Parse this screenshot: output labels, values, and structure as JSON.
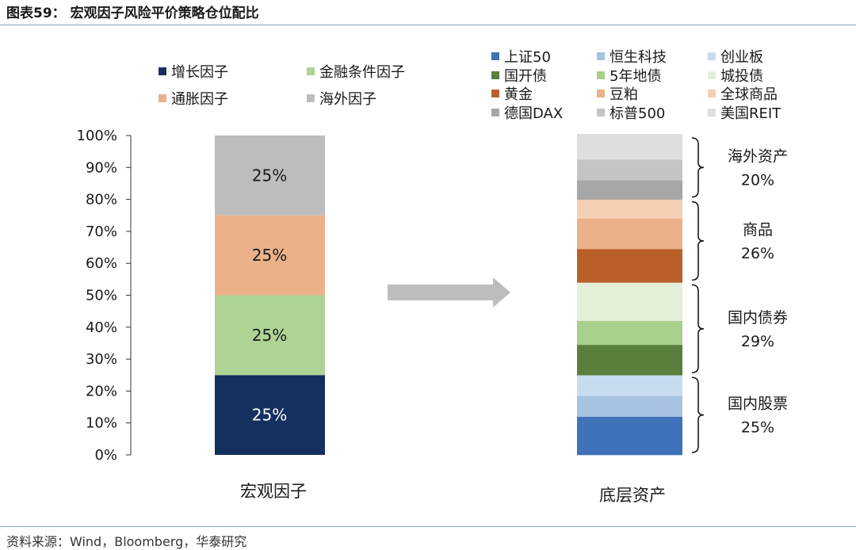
{
  "title": "图表59：  宏观因子风险平价策略仓位配比",
  "source": "资料来源：Wind，Bloomberg，华泰研究",
  "chart_data": [
    {
      "type": "bar",
      "stacked": true,
      "category": "宏观因子",
      "ylim": [
        0,
        100
      ],
      "yticks": [
        "0%",
        "10%",
        "20%",
        "30%",
        "40%",
        "50%",
        "60%",
        "70%",
        "80%",
        "90%",
        "100%"
      ],
      "series": [
        {
          "name": "增长因子",
          "value": 25,
          "label": "25%",
          "color": "#14305e"
        },
        {
          "name": "金融条件因子",
          "value": 25,
          "label": "25%",
          "color": "#aed394"
        },
        {
          "name": "通胀因子",
          "value": 25,
          "label": "25%",
          "color": "#ebb28a"
        },
        {
          "name": "海外因子",
          "value": 25,
          "label": "25%",
          "color": "#bdbdbd"
        }
      ]
    },
    {
      "type": "bar",
      "stacked": true,
      "category": "底层资产",
      "ylim": [
        0,
        100
      ],
      "series": [
        {
          "name": "上证50",
          "value": 12,
          "color": "#3f72b8"
        },
        {
          "name": "恒生科技",
          "value": 6.5,
          "color": "#a6c3e3"
        },
        {
          "name": "创业板",
          "value": 6.5,
          "color": "#c8dcef"
        },
        {
          "name": "国开债",
          "value": 9.5,
          "color": "#5b7f3c"
        },
        {
          "name": "5年地债",
          "value": 7.5,
          "color": "#a8cf8c"
        },
        {
          "name": "城投债",
          "value": 12,
          "color": "#e3efd8"
        },
        {
          "name": "黄金",
          "value": 10.5,
          "color": "#b9602a"
        },
        {
          "name": "豆粕",
          "value": 9.5,
          "color": "#ebb28a"
        },
        {
          "name": "全球商品",
          "value": 6,
          "color": "#f5cfb3"
        },
        {
          "name": "德国DAX",
          "value": 6,
          "color": "#a6a6a6"
        },
        {
          "name": "标普500",
          "value": 6.5,
          "color": "#c4c4c4"
        },
        {
          "name": "美国REIT",
          "value": 8,
          "color": "#dedede"
        }
      ],
      "groups": [
        {
          "name": "国内股票",
          "value": "25%",
          "from": 0,
          "to": 25
        },
        {
          "name": "国内债券",
          "value": "29%",
          "from": 25,
          "to": 54
        },
        {
          "name": "商品",
          "value": "26%",
          "from": 54,
          "to": 80
        },
        {
          "name": "海外资产",
          "value": "20%",
          "from": 80,
          "to": 100
        }
      ]
    }
  ]
}
